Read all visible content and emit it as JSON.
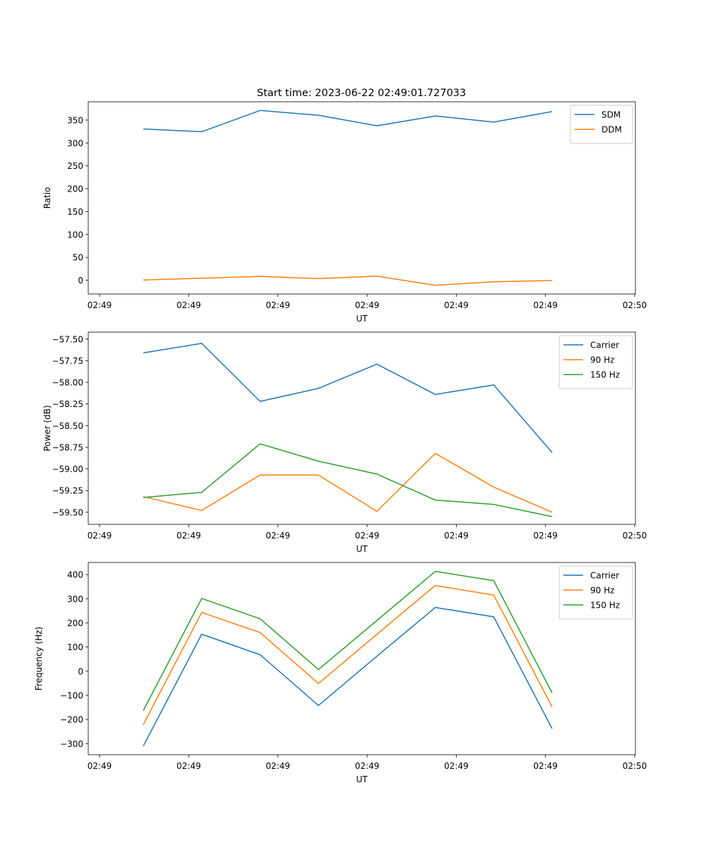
{
  "figure": {
    "title": "Start time: 2023-06-22 02:49:01.727033"
  },
  "colors": {
    "blue": "#1f77b4",
    "orange": "#ff7f0e",
    "green": "#2ca02c"
  },
  "chart_data": [
    {
      "type": "line",
      "title": "Start time: 2023-06-22 02:49:01.727033",
      "xlabel": "UT",
      "ylabel": "Ratio",
      "legend": "top-right",
      "grid": false,
      "x_tick_labels": [
        "02:49",
        "02:49",
        "02:49",
        "02:49",
        "02:49",
        "02:49",
        "02:50"
      ],
      "ylim": [
        -30,
        390
      ],
      "y_ticks": [
        0,
        50,
        100,
        150,
        200,
        250,
        300,
        350
      ],
      "y_tick_labels": [
        "0",
        "50",
        "100",
        "150",
        "200",
        "250",
        "300",
        "350"
      ],
      "series": [
        {
          "name": "SDM",
          "color": "#1f77b4",
          "values": [
            330.5,
            324.5,
            371.0,
            360.5,
            337.5,
            359.0,
            345.5,
            368.5
          ]
        },
        {
          "name": "DDM",
          "color": "#ff7f0e",
          "values": [
            0.5,
            4.5,
            8.5,
            3.5,
            9.0,
            -11.0,
            -3.5,
            -0.5
          ]
        }
      ]
    },
    {
      "type": "line",
      "title": "",
      "xlabel": "UT",
      "ylabel": "Power (dB)",
      "legend": "top-right",
      "grid": false,
      "x_tick_labels": [
        "02:49",
        "02:49",
        "02:49",
        "02:49",
        "02:49",
        "02:49",
        "02:50"
      ],
      "ylim": [
        -59.64,
        -57.42
      ],
      "y_ticks": [
        -57.5,
        -57.75,
        -58.0,
        -58.25,
        -58.5,
        -58.75,
        -59.0,
        -59.25,
        -59.5
      ],
      "y_tick_labels": [
        "−57.50",
        "−57.75",
        "−58.00",
        "−58.25",
        "−58.50",
        "−58.75",
        "−59.00",
        "−59.25",
        "−59.50"
      ],
      "series": [
        {
          "name": "Carrier",
          "color": "#1f77b4",
          "values": [
            -57.66,
            -57.55,
            -58.22,
            -58.07,
            -57.79,
            -58.14,
            -58.03,
            -58.81
          ]
        },
        {
          "name": "90 Hz",
          "color": "#ff7f0e",
          "values": [
            -59.32,
            -59.48,
            -59.07,
            -59.07,
            -59.49,
            -58.82,
            -59.21,
            -59.5
          ]
        },
        {
          "name": "150 Hz",
          "color": "#2ca02c",
          "values": [
            -59.33,
            -59.27,
            -58.71,
            -58.91,
            -59.06,
            -59.36,
            -59.41,
            -59.55
          ]
        }
      ]
    },
    {
      "type": "line",
      "title": "",
      "xlabel": "UT",
      "ylabel": "Frequency (Hz)",
      "legend": "top-right",
      "grid": false,
      "x_tick_labels": [
        "02:49",
        "02:49",
        "02:49",
        "02:49",
        "02:49",
        "02:49",
        "02:50"
      ],
      "ylim": [
        -346,
        450
      ],
      "y_ticks": [
        -300,
        -200,
        -100,
        0,
        100,
        200,
        300,
        400
      ],
      "y_tick_labels": [
        "−300",
        "−200",
        "−100",
        "0",
        "100",
        "200",
        "300",
        "400"
      ],
      "series": [
        {
          "name": "Carrier",
          "color": "#1f77b4",
          "values": [
            -310,
            153,
            68,
            -142,
            62,
            264,
            225,
            -238
          ]
        },
        {
          "name": "90 Hz",
          "color": "#ff7f0e",
          "values": [
            -221,
            243,
            160,
            -51,
            153,
            355,
            315,
            -148
          ]
        },
        {
          "name": "150 Hz",
          "color": "#2ca02c",
          "values": [
            -163,
            301,
            217,
            7,
            210,
            413,
            375,
            -90
          ]
        }
      ]
    }
  ]
}
